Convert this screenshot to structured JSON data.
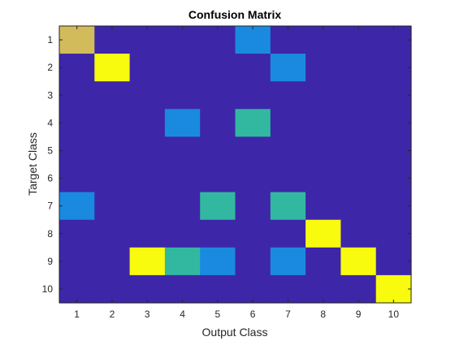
{
  "chart_data": {
    "type": "heatmap",
    "title": "Confusion Matrix",
    "xlabel": "Output Class",
    "ylabel": "Target Class",
    "x_categories": [
      "1",
      "2",
      "3",
      "4",
      "5",
      "6",
      "7",
      "8",
      "9",
      "10"
    ],
    "y_categories": [
      "1",
      "2",
      "3",
      "4",
      "5",
      "6",
      "7",
      "8",
      "9",
      "10"
    ],
    "colormap": "parula",
    "clim": [
      0,
      1
    ],
    "values": [
      [
        0.75,
        0,
        0,
        0,
        0,
        0.38,
        0,
        0,
        0,
        0
      ],
      [
        0,
        1,
        0,
        0,
        0,
        0,
        0.38,
        0,
        0,
        0
      ],
      [
        0,
        0,
        0,
        0,
        0,
        0,
        0,
        0,
        0,
        0
      ],
      [
        0,
        0,
        0,
        0.38,
        0,
        0.55,
        0,
        0,
        0,
        0
      ],
      [
        0,
        0,
        0,
        0,
        0,
        0,
        0,
        0,
        0,
        0
      ],
      [
        0,
        0,
        0,
        0,
        0,
        0,
        0,
        0,
        0,
        0
      ],
      [
        0.38,
        0,
        0,
        0,
        0.55,
        0,
        0.55,
        0,
        0,
        0
      ],
      [
        0,
        0,
        0,
        0,
        0,
        0,
        0,
        1,
        0,
        0
      ],
      [
        0,
        0,
        1,
        0.55,
        0.38,
        0,
        0.38,
        0,
        1,
        0
      ],
      [
        0,
        0,
        0,
        0,
        0,
        0,
        0,
        0,
        0,
        1
      ]
    ]
  }
}
